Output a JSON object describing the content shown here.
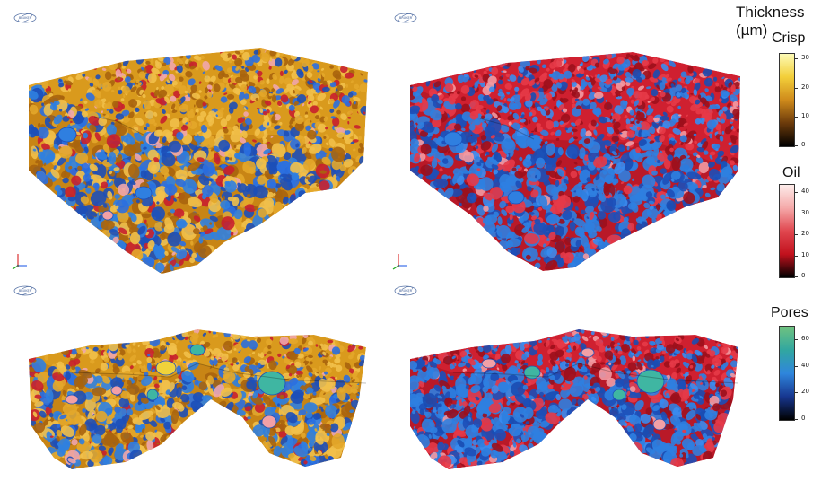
{
  "legend": {
    "title": "Thickness (µm)",
    "sections": [
      {
        "label": "Crisp",
        "ticks": [
          "30",
          "20",
          "10",
          "0"
        ],
        "colors": [
          "#fdfbb6",
          "#f3cf3a",
          "#cf8a1b",
          "#6b3a0b",
          "#000000"
        ]
      },
      {
        "label": "Oil",
        "ticks": [
          "40",
          "30",
          "20",
          "10",
          "0"
        ],
        "colors": [
          "#fdecea",
          "#f5a9a9",
          "#e0474f",
          "#c2111d",
          "#000000"
        ]
      },
      {
        "label": "Pores",
        "ticks": [
          "60",
          "40",
          "20",
          "0"
        ],
        "colors": [
          "#6fc27f",
          "#31a7a0",
          "#2f86dc",
          "#17368f",
          "#000000"
        ]
      }
    ]
  },
  "panels": [
    {
      "name": "top-left",
      "surface": "crisp"
    },
    {
      "name": "top-right",
      "surface": "oil"
    },
    {
      "name": "bottom-left",
      "surface": "crisp"
    },
    {
      "name": "bottom-right",
      "surface": "oil"
    }
  ],
  "colors": {
    "crisp": "#d99a1d",
    "oil": "#cf2030",
    "pore": "#2f7fe0",
    "large_pore": "#3fb6a2",
    "oil_pink": "#f2a0a6"
  }
}
